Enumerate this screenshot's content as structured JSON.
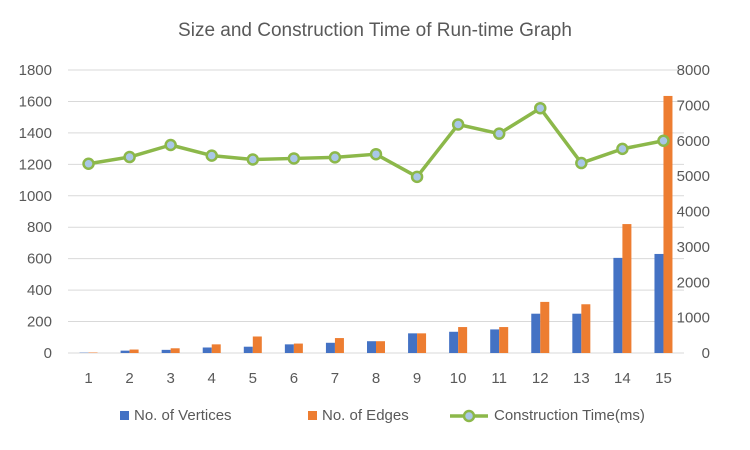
{
  "chart_data": {
    "type": "bar",
    "title": "Size and Construction Time of Run-time Graph",
    "categories": [
      "1",
      "2",
      "3",
      "4",
      "5",
      "6",
      "7",
      "8",
      "9",
      "10",
      "11",
      "12",
      "13",
      "14",
      "15"
    ],
    "series": [
      {
        "name": "No. of Vertices",
        "type": "bar",
        "axis": "left",
        "color": "#4472c4",
        "values": [
          2,
          15,
          20,
          35,
          40,
          55,
          65,
          75,
          125,
          135,
          150,
          250,
          250,
          605,
          630
        ]
      },
      {
        "name": "No. of Edges",
        "type": "bar",
        "axis": "left",
        "color": "#ed7d31",
        "values": [
          3,
          22,
          30,
          55,
          105,
          60,
          95,
          75,
          125,
          165,
          165,
          325,
          310,
          820,
          1635
        ]
      },
      {
        "name": "Construction Time(ms)",
        "type": "line",
        "axis": "right",
        "color": "#8cb84a",
        "marker_fill": "#a9c7e8",
        "values": [
          5350,
          5540,
          5880,
          5580,
          5470,
          5500,
          5530,
          5620,
          4980,
          6460,
          6200,
          6920,
          5370,
          5770,
          6000
        ]
      }
    ],
    "y_left": {
      "min": 0,
      "max": 1800,
      "step": 200,
      "ticks": [
        "0",
        "200",
        "400",
        "600",
        "800",
        "1000",
        "1200",
        "1400",
        "1600",
        "1800"
      ]
    },
    "y_right": {
      "min": 0,
      "max": 8000,
      "step": 1000,
      "ticks": [
        "0",
        "1000",
        "2000",
        "3000",
        "4000",
        "5000",
        "6000",
        "7000",
        "8000"
      ]
    },
    "grid": true,
    "legend": "bottom",
    "gridline_color": "#d9d9d9"
  }
}
